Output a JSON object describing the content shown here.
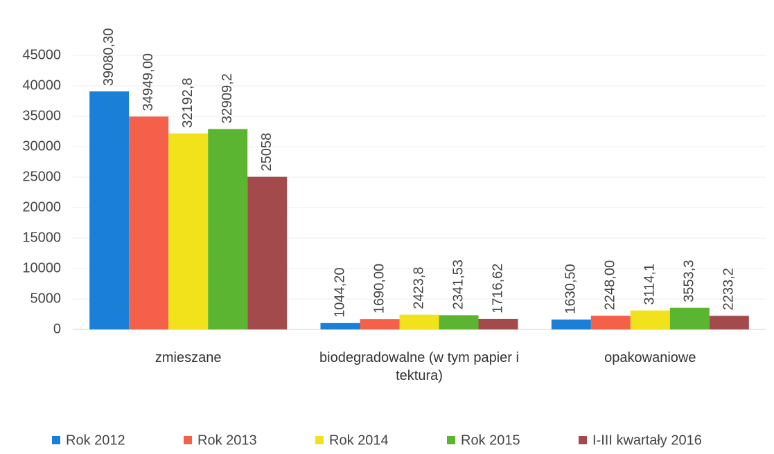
{
  "chart_data": {
    "type": "bar",
    "categories": [
      "zmieszane",
      "biodegradowalne (w tym papier i tektura)",
      "opakowaniowe"
    ],
    "series": [
      {
        "name": "Rok 2012",
        "color": "#1a7fd6",
        "values": [
          39080.3,
          1044.2,
          1630.5
        ],
        "value_labels": [
          "39080,30",
          "1044,20",
          "1630,50"
        ]
      },
      {
        "name": "Rok 2013",
        "color": "#f5604a",
        "values": [
          34949,
          1690,
          2248
        ],
        "value_labels": [
          "34949,00",
          "1690,00",
          "2248,00"
        ]
      },
      {
        "name": "Rok 2014",
        "color": "#f2e21c",
        "values": [
          32192.8,
          2423.8,
          3114.1
        ],
        "value_labels": [
          "32192,8",
          "2423,8",
          "3114,1"
        ]
      },
      {
        "name": "Rok 2015",
        "color": "#5cb531",
        "values": [
          32909.2,
          2341.53,
          3553.3
        ],
        "value_labels": [
          "32909,2",
          "2341,53",
          "3553,3"
        ]
      },
      {
        "name": "I-III kwartały 2016",
        "color": "#a24a4c",
        "values": [
          25058,
          1716.62,
          2233.2
        ],
        "value_labels": [
          "25058",
          "1716,62",
          "2233,2"
        ]
      }
    ],
    "ylim": [
      0,
      45000
    ],
    "yticks": [
      0,
      5000,
      10000,
      15000,
      20000,
      25000,
      30000,
      35000,
      40000,
      45000
    ],
    "grid": true
  }
}
